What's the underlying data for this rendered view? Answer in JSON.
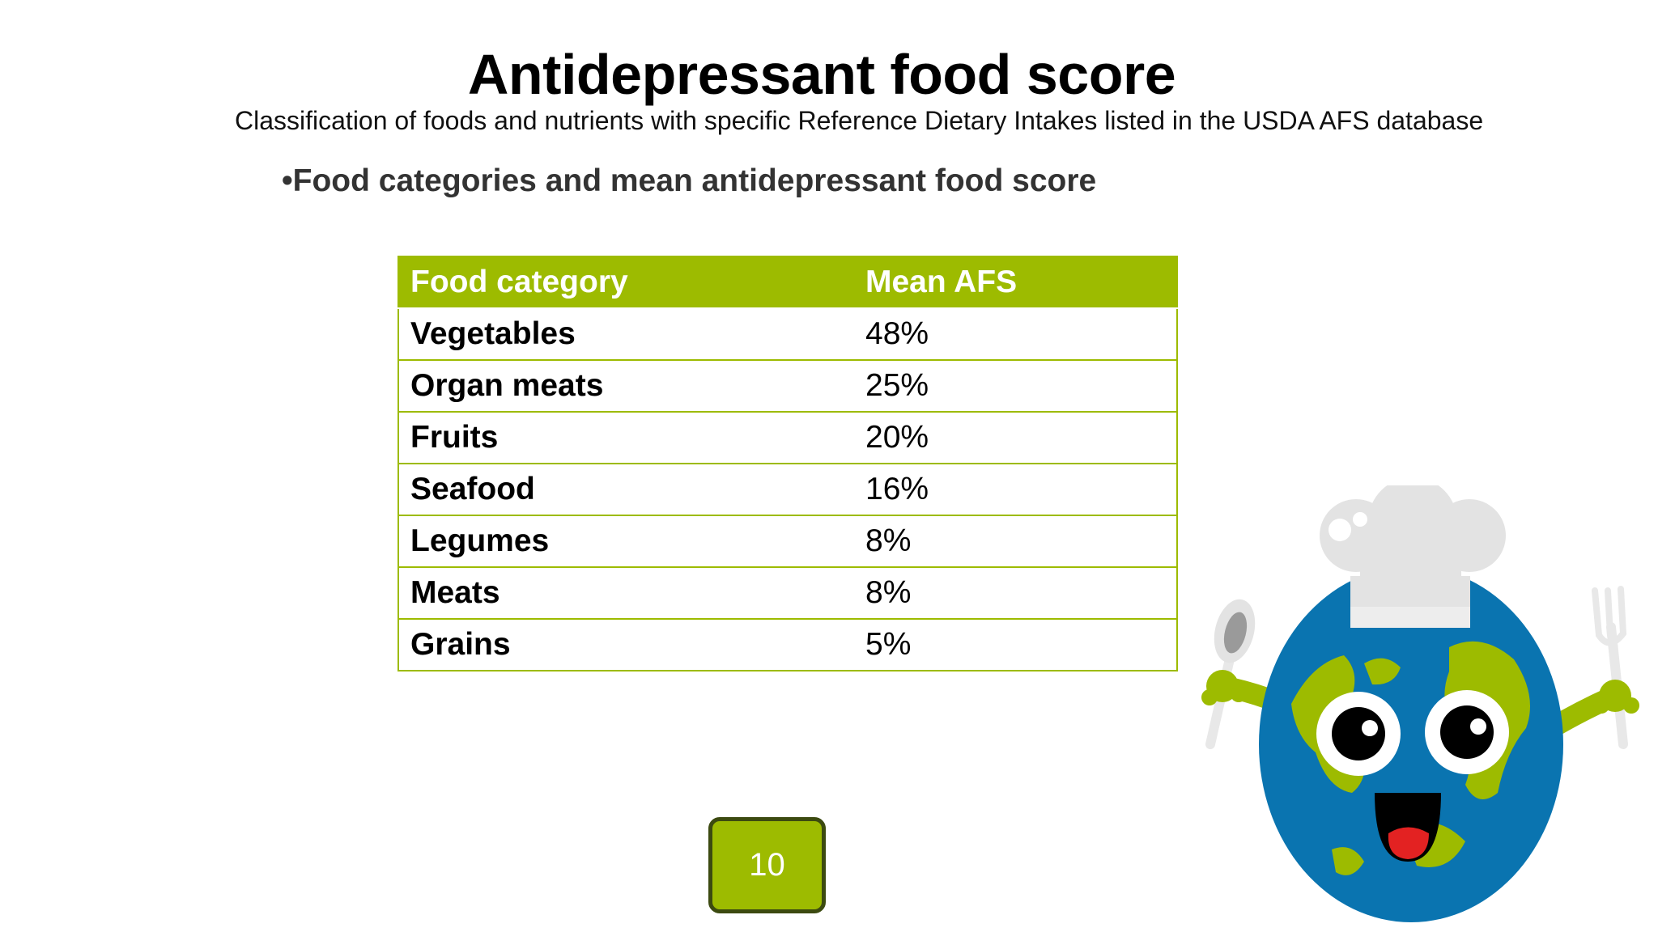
{
  "slide": {
    "title": "Antidepressant food score",
    "subtitle": "Classification of foods and nutrients with specific Reference Dietary Intakes listed in the USDA AFS database",
    "bullet": "•Food categories and mean antidepressant food score",
    "page_number": "10"
  },
  "table": {
    "headers": [
      "Food category",
      "Mean AFS"
    ],
    "rows": [
      {
        "category": "Vegetables",
        "value": "48%"
      },
      {
        "category": "Organ meats",
        "value": "25%"
      },
      {
        "category": "Fruits",
        "value": "20%"
      },
      {
        "category": "Seafood",
        "value": "16%"
      },
      {
        "category": "Legumes",
        "value": "8%"
      },
      {
        "category": "Meats",
        "value": "8%"
      },
      {
        "category": "Grains",
        "value": "5%"
      }
    ]
  },
  "illustration": {
    "icon": "chef-earth-mascot-icon"
  },
  "colors": {
    "accent_green": "#9dbb00",
    "badge_border": "#3c4a10",
    "ocean_blue": "#0a74b0",
    "tongue_red": "#e32222",
    "hat_gray": "#e3e3e3"
  }
}
